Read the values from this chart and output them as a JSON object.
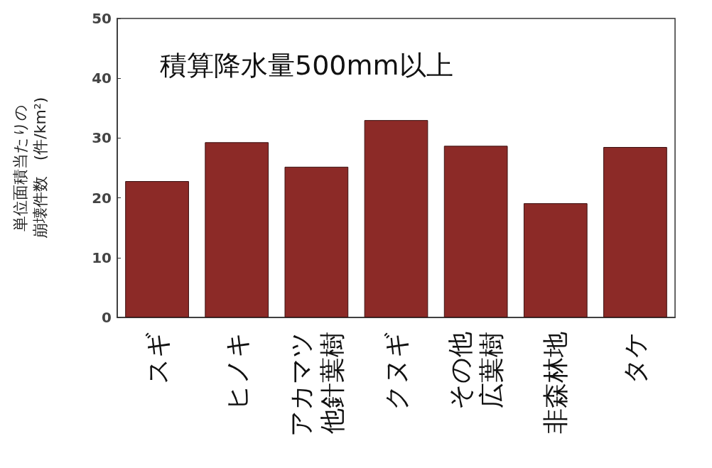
{
  "chart_data": {
    "type": "bar",
    "title": "積算降水量500mm以上",
    "ylabel": "単位面積当たりの崩壊件数　(件/km²)",
    "categories": [
      "スギ",
      "ヒノキ",
      "アカマツ他針葉樹",
      "クヌギ",
      "その他広葉樹",
      "非森林地",
      "タケ"
    ],
    "values": [
      22.8,
      29.3,
      25.2,
      33.0,
      28.7,
      19.1,
      28.5
    ],
    "color": "#8c2a27",
    "ylim": [
      0,
      50
    ],
    "yticks": [
      0,
      10,
      20,
      30,
      40,
      50
    ],
    "grid": false
  }
}
